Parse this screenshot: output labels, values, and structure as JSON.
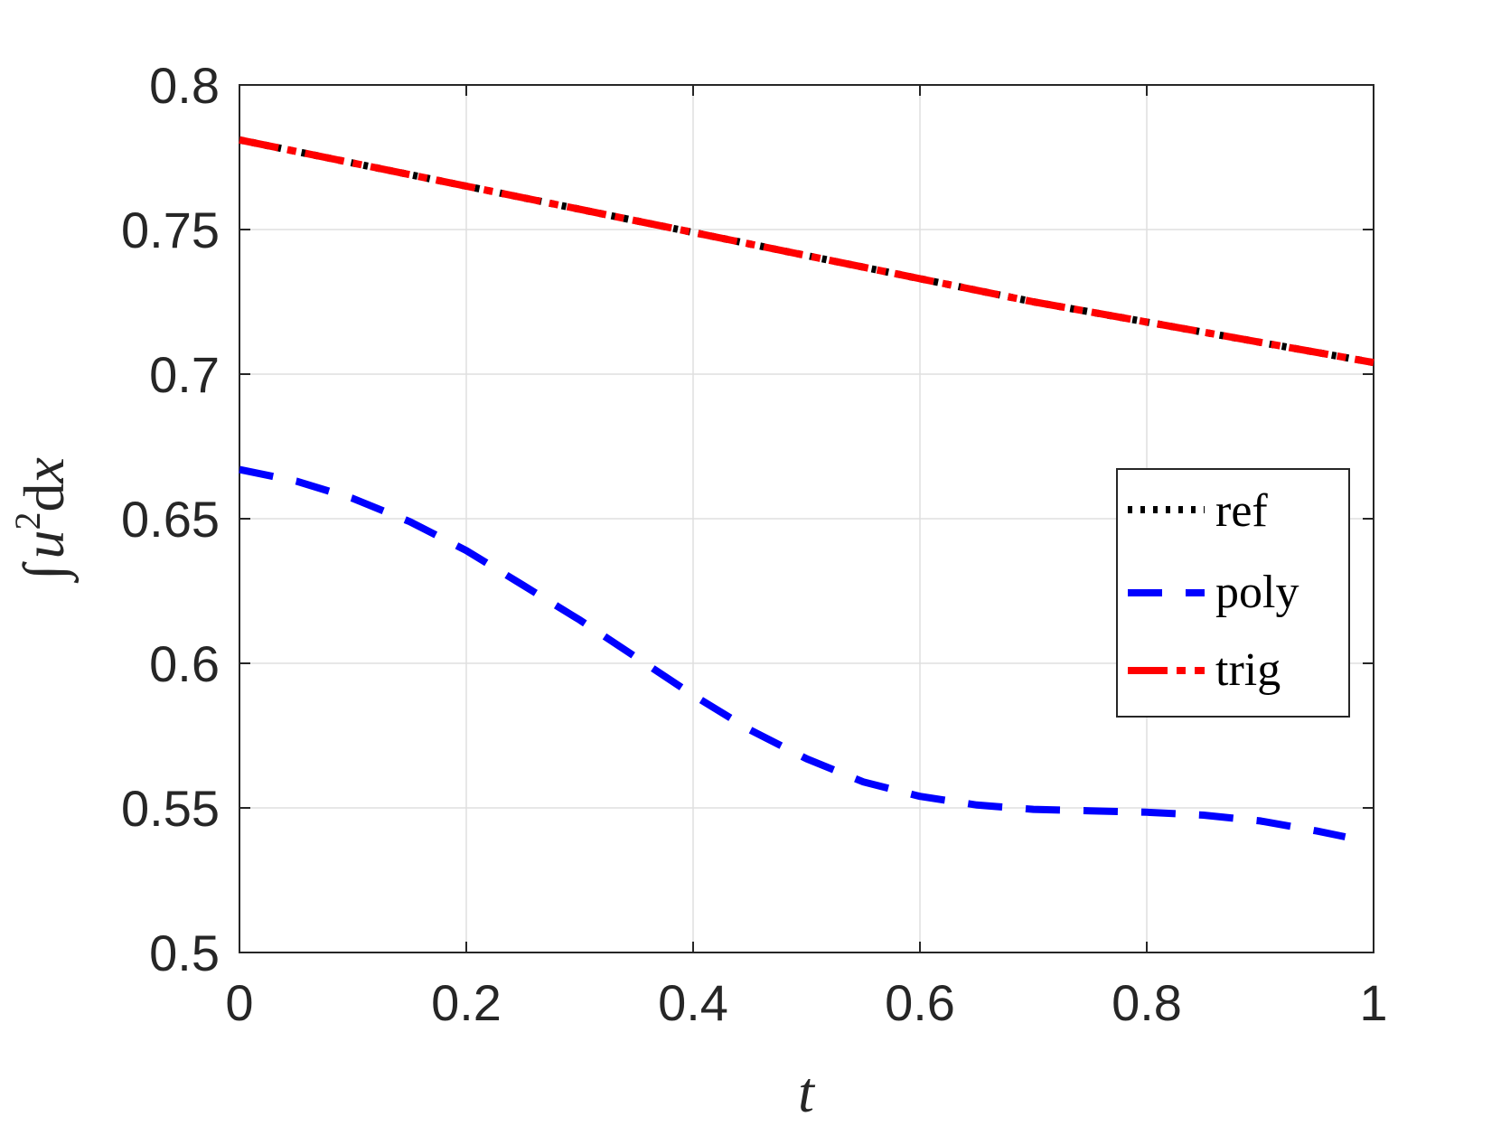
{
  "chart_data": {
    "type": "line",
    "xlabel": "t",
    "ylabel_parts": {
      "integral": "∫",
      "var": "u",
      "power": "2",
      "dx": "d",
      "x": "x"
    },
    "xlim": [
      0,
      1
    ],
    "ylim": [
      0.5,
      0.8
    ],
    "xticks": [
      0,
      0.2,
      0.4,
      0.6,
      0.8,
      1
    ],
    "xtick_labels": [
      "0",
      "0.2",
      "0.4",
      "0.6",
      "0.8",
      "1"
    ],
    "yticks": [
      0.5,
      0.55,
      0.6,
      0.65,
      0.7,
      0.75,
      0.8
    ],
    "ytick_labels": [
      "0.5",
      "0.55",
      "0.6",
      "0.65",
      "0.7",
      "0.75",
      "0.8"
    ],
    "grid": true,
    "legend_position": "right",
    "series": [
      {
        "name": "ref",
        "color": "#000000",
        "style": "dotted",
        "x": [
          0,
          0.1,
          0.2,
          0.3,
          0.4,
          0.5,
          0.6,
          0.7,
          0.8,
          0.9,
          1.0
        ],
        "y": [
          0.781,
          0.773,
          0.765,
          0.757,
          0.749,
          0.741,
          0.733,
          0.725,
          0.718,
          0.711,
          0.704
        ]
      },
      {
        "name": "poly",
        "color": "#0000ff",
        "style": "dashed",
        "x": [
          0,
          0.05,
          0.1,
          0.15,
          0.2,
          0.25,
          0.3,
          0.35,
          0.4,
          0.45,
          0.5,
          0.55,
          0.6,
          0.65,
          0.7,
          0.75,
          0.8,
          0.85,
          0.9,
          0.95,
          0.975
        ],
        "y": [
          0.667,
          0.663,
          0.657,
          0.649,
          0.639,
          0.627,
          0.615,
          0.602,
          0.589,
          0.577,
          0.567,
          0.559,
          0.554,
          0.551,
          0.5495,
          0.549,
          0.5485,
          0.5475,
          0.5455,
          0.542,
          0.54
        ]
      },
      {
        "name": "trig",
        "color": "#ff0000",
        "style": "dashdot",
        "x": [
          0,
          0.1,
          0.2,
          0.3,
          0.4,
          0.5,
          0.6,
          0.7,
          0.8,
          0.9,
          1.0
        ],
        "y": [
          0.781,
          0.773,
          0.765,
          0.757,
          0.749,
          0.741,
          0.733,
          0.725,
          0.718,
          0.711,
          0.704
        ]
      }
    ]
  }
}
